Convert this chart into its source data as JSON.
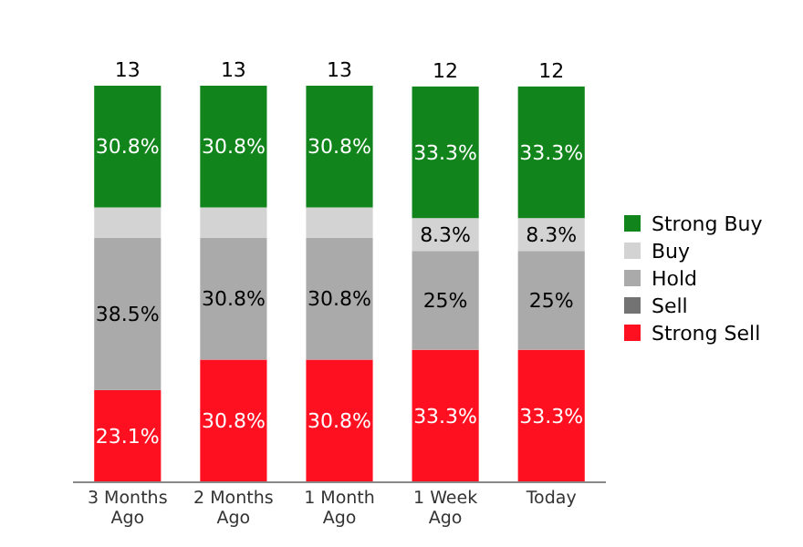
{
  "chart_data": {
    "type": "bar",
    "stacked": true,
    "categories": [
      "3 Months Ago",
      "2 Months Ago",
      "1 Month Ago",
      "1 Week Ago",
      "Today"
    ],
    "series": [
      {
        "name": "Strong Sell",
        "color": "#ff1020",
        "values": [
          23.1,
          30.8,
          30.8,
          33.3,
          33.3
        ],
        "value_labels": [
          "23.1%",
          "30.8%",
          "30.8%",
          "33.3%",
          "33.3%"
        ]
      },
      {
        "name": "Sell",
        "color": "#737373",
        "values": [
          0,
          0,
          0,
          0,
          0
        ],
        "value_labels": [
          null,
          null,
          null,
          null,
          null
        ]
      },
      {
        "name": "Hold",
        "color": "#aaaaaa",
        "values": [
          38.5,
          30.8,
          30.8,
          25,
          25
        ],
        "value_labels": [
          "38.5%",
          "30.8%",
          "30.8%",
          "25%",
          "25%"
        ]
      },
      {
        "name": "Buy",
        "color": "#d3d3d3",
        "values": [
          7.7,
          7.7,
          7.7,
          8.3,
          8.3
        ],
        "value_labels": [
          null,
          null,
          null,
          "8.3%",
          "8.3%"
        ]
      },
      {
        "name": "Strong Buy",
        "color": "#11841b",
        "values": [
          30.8,
          30.8,
          30.8,
          33.3,
          33.3
        ],
        "value_labels": [
          "30.8%",
          "30.8%",
          "30.8%",
          "33.3%",
          "33.3%"
        ]
      }
    ],
    "annotations": [
      "13",
      "13",
      "13",
      "12",
      "12"
    ],
    "tick_labels": "x",
    "legend": "right"
  }
}
